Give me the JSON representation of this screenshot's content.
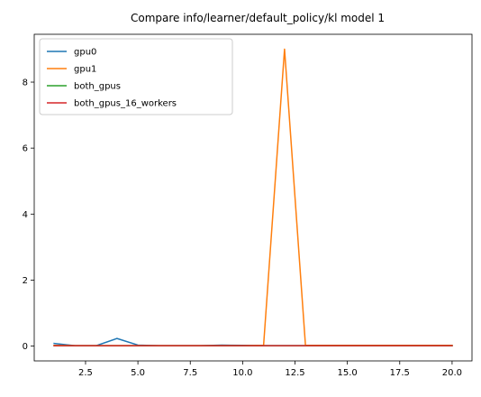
{
  "chart_data": {
    "type": "line",
    "title": "Compare info/learner/default_policy/kl model 1",
    "xlabel": "",
    "ylabel": "",
    "xlim": [
      0.05,
      20.95
    ],
    "ylim": [
      -0.45,
      9.45
    ],
    "x_ticks": [
      2.5,
      5.0,
      7.5,
      10.0,
      12.5,
      15.0,
      17.5,
      20.0
    ],
    "y_ticks": [
      0,
      2,
      4,
      6,
      8
    ],
    "grid": false,
    "legend_position": "top-left",
    "x": [
      1,
      2,
      3,
      4,
      5,
      6,
      7,
      8,
      9,
      10,
      11,
      12,
      13,
      14,
      15,
      16,
      17,
      18,
      19,
      20
    ],
    "series": [
      {
        "name": "gpu0",
        "color": "#1f77b4",
        "values": [
          0.08,
          0.01,
          0.01,
          0.23,
          0.03,
          0.01,
          0.01,
          0.01,
          0.03,
          0.02,
          0.01,
          0.01,
          0.01,
          0.01,
          0.01,
          0.01,
          0.01,
          0.01,
          0.01,
          0.01
        ]
      },
      {
        "name": "gpu1",
        "color": "#ff7f0e",
        "values": [
          0.02,
          0.01,
          0.01,
          0.01,
          0.01,
          0.01,
          0.01,
          0.01,
          0.01,
          0.01,
          0.02,
          9.0,
          0.02,
          0.02,
          0.02,
          0.02,
          0.02,
          0.02,
          0.02,
          0.02
        ]
      },
      {
        "name": "both_gpus",
        "color": "#2ca02c",
        "values": [
          0.01,
          0.01,
          0.01,
          0.01,
          0.01,
          0.01,
          0.01,
          0.01,
          0.01,
          0.01,
          0.01,
          0.01,
          0.01,
          0.01,
          0.01,
          0.01,
          0.01,
          0.01,
          0.01,
          0.01
        ]
      },
      {
        "name": "both_gpus_16_workers",
        "color": "#d62728",
        "values": [
          0.01,
          0.01,
          0.01,
          0.01,
          0.01,
          0.01,
          0.01,
          0.01,
          0.01,
          0.01,
          0.01,
          0.01,
          0.01,
          0.01,
          0.01,
          0.01,
          0.01,
          0.01,
          0.01,
          0.01
        ]
      }
    ]
  }
}
